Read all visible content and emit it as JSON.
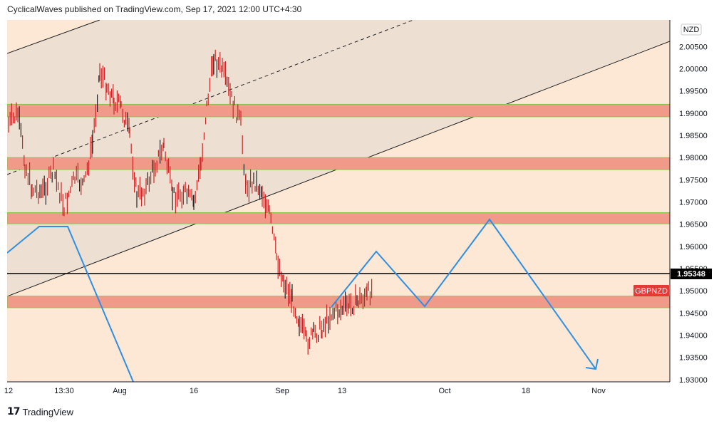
{
  "header": {
    "text": "CyclicalWaves published on TradingView.com, Sep 17, 2021 12:00 UTC+4:30"
  },
  "footer": {
    "logo_glyph": "17",
    "brand": "TradingView"
  },
  "colors": {
    "background": "#fce8d4",
    "channel_fill": "#eedfd3",
    "zone_fill": "#f29a8a",
    "zone_border": "#8bc34a",
    "candle": "#c62828",
    "projection": "#2f8fe6",
    "current_price_line": "#000000",
    "symbol_badge": "#e53935"
  },
  "chart_data": {
    "type": "candlestick",
    "symbol": "GBPNZD",
    "currency": "NZD",
    "current_price": 1.95348,
    "current_price_label": "1.95348",
    "ylim": [
      1.9295,
      2.011
    ],
    "y_ticks": [
      "1.93000",
      "1.93500",
      "1.94000",
      "1.94500",
      "1.95000",
      "1.95500",
      "1.96000",
      "1.96500",
      "1.97000",
      "1.97500",
      "1.98000",
      "1.98500",
      "1.99000",
      "1.99500",
      "2.00000",
      "2.00500"
    ],
    "x_ticks": [
      "12",
      "13:30",
      "Aug",
      "16",
      "Sep",
      "13",
      "Oct",
      "18",
      "Nov"
    ],
    "zones": [
      {
        "low": 1.9892,
        "high": 1.992
      },
      {
        "low": 1.9773,
        "high": 1.98
      },
      {
        "low": 1.9651,
        "high": 1.9676
      },
      {
        "low": 1.9462,
        "high": 1.9488
      }
    ],
    "projection_path_right": [
      1.946,
      1.9585,
      1.9462,
      1.9655,
      1.9312
    ],
    "projection_path_left": [
      1.958,
      1.965,
      1.965,
      1.93
    ]
  }
}
